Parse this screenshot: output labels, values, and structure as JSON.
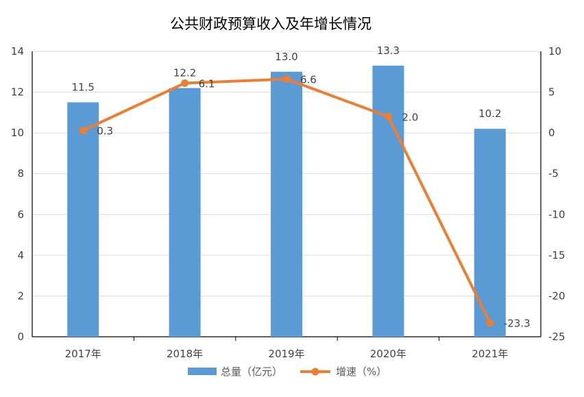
{
  "chart_data": {
    "type": "bar+line",
    "title": "公共财政预算收入及年增长情况",
    "categories": [
      "2017年",
      "2018年",
      "2019年",
      "2020年",
      "2021年"
    ],
    "series": [
      {
        "name": "总量（亿元）",
        "type": "bar",
        "axis": "left",
        "color": "#5B9BD5",
        "values": [
          11.5,
          12.2,
          13.0,
          13.3,
          10.2
        ],
        "labels": [
          "11.5",
          "12.2",
          "13.0",
          "13.3",
          "10.2"
        ]
      },
      {
        "name": "增速（%）",
        "type": "line",
        "axis": "right",
        "color": "#ED7D31",
        "values": [
          0.3,
          6.1,
          6.6,
          2.0,
          -23.3
        ],
        "labels": [
          "0.3",
          "6.1",
          "6.6",
          "2.0",
          "-23.3"
        ]
      }
    ],
    "left_axis": {
      "range": [
        0,
        14
      ],
      "ticks": [
        "0",
        "2",
        "4",
        "6",
        "8",
        "10",
        "12",
        "14"
      ]
    },
    "right_axis": {
      "range": [
        -25,
        10
      ],
      "ticks": [
        "-25",
        "-20",
        "-15",
        "-10",
        "-5",
        "0",
        "5",
        "10"
      ]
    },
    "grid": true,
    "legend_position": "bottom"
  }
}
